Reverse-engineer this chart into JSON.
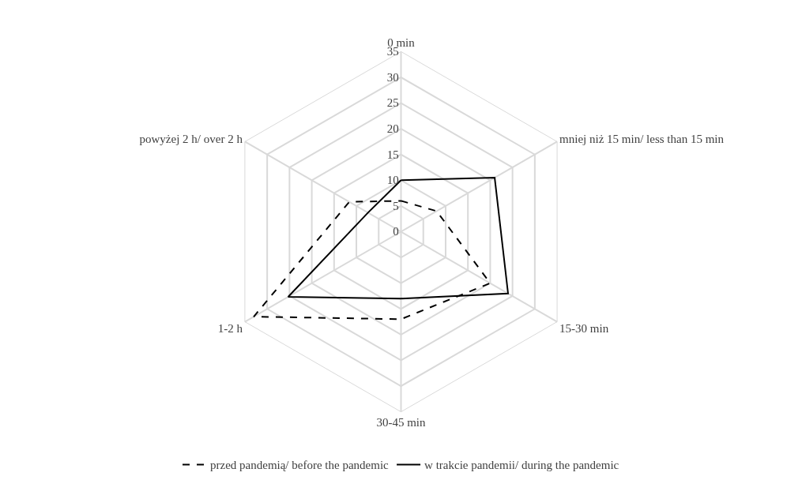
{
  "chart_data": {
    "type": "radar",
    "categories": [
      "0 min",
      "mniej niż 15 min/ less than 15 min",
      "15-30 min",
      "30-45 min",
      "1-2 h",
      "powyżej 2 h/ over 2 h"
    ],
    "series": [
      {
        "name": "przed pandemią/ before the pandemic",
        "color": "#000000",
        "line_style": "dashed",
        "values": [
          6,
          8,
          20,
          17,
          33,
          11.6
        ]
      },
      {
        "name": "w trakcie pandemii/ during the pandemic",
        "color": "#000000",
        "line_style": "solid",
        "values": [
          10,
          21,
          24,
          13,
          25.3,
          7.4
        ]
      }
    ],
    "ylim": [
      0,
      35
    ],
    "yticks": [
      0,
      5,
      10,
      15,
      20,
      25,
      30,
      35
    ],
    "grid": true,
    "legend": "bottom",
    "marker": "none"
  }
}
